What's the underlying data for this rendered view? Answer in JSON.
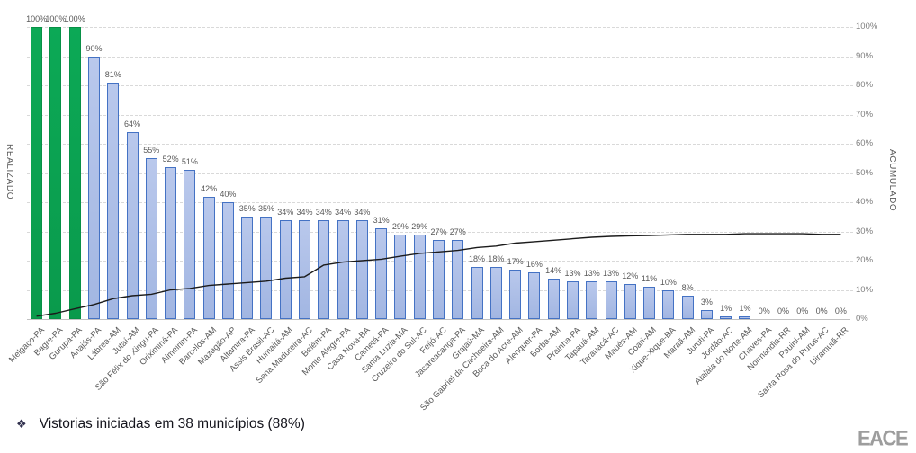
{
  "chart_data": {
    "type": "bar",
    "title": "",
    "xlabel": "",
    "categories": [
      "Melgaço-PA",
      "Bagre-PA",
      "Gurupá-PA",
      "Anajás-PA",
      "Lábrea-AM",
      "Jutaí-AM",
      "São Félix do Xingu-PA",
      "Oriximiná-PA",
      "Almeirim-PA",
      "Barcelos-AM",
      "Mazagão-AP",
      "Altamira-PA",
      "Assis Brasil-AC",
      "Humaitá-AM",
      "Sena Madureira-AC",
      "Belém-PA",
      "Monte Alegre-PA",
      "Casa Nova-BA",
      "Cametá-PA",
      "Santa Luzia-MA",
      "Cruzeiro do Sul-AC",
      "Feijó-AC",
      "Jacareacanga-PA",
      "Grajaú-MA",
      "São Gabriel da Cachoeira-AM",
      "Boca do Acre-AM",
      "Alenquer-PA",
      "Borba-AM",
      "Prainha-PA",
      "Tapauá-AM",
      "Tarauacá-AC",
      "Maués-AM",
      "Coari-AM",
      "Xique-Xique-BA",
      "Maraã-AM",
      "Juruti-PA",
      "Jordão-AC",
      "Atalaia do Norte-AM",
      "Chaves-PA",
      "Normandia-RR",
      "Pauini-AM",
      "Santa Rosa do Purus-AC",
      "Uiramutã-RR"
    ],
    "series": [
      {
        "name": "REALIZADO",
        "type": "bar",
        "axis": "primary",
        "unit": "%",
        "values": [
          100,
          100,
          100,
          90,
          81,
          64,
          55,
          52,
          51,
          42,
          40,
          35,
          35,
          34,
          34,
          34,
          34,
          34,
          31,
          29,
          29,
          27,
          27,
          18,
          18,
          17,
          16,
          14,
          13,
          13,
          13,
          12,
          11,
          10,
          8,
          3,
          1,
          1,
          0,
          0,
          0,
          0,
          0
        ]
      },
      {
        "name": "ACUMULADO",
        "type": "line",
        "axis": "secondary",
        "unit": "%",
        "note": "unlabeled line, values estimated from pixels",
        "values": [
          1,
          2,
          3.5,
          5,
          7,
          8,
          8.5,
          10,
          10.5,
          11.5,
          12,
          12.5,
          13,
          14,
          14.5,
          18.5,
          19.5,
          20,
          20.5,
          21.5,
          22.5,
          23,
          23.5,
          24.5,
          25,
          26,
          26.5,
          27,
          27.5,
          28,
          28.3,
          28.5,
          28.6,
          28.8,
          29,
          29,
          29,
          29.2,
          29.2,
          29.2,
          29.2,
          29,
          29
        ]
      }
    ],
    "green_bar_indices": [
      0,
      1,
      2
    ],
    "bar_labels_shown": true,
    "grid": true,
    "legend": "none",
    "y_axis_left": {
      "title": "REALIZADO",
      "range": [
        0,
        100
      ],
      "ticks": []
    },
    "y_axis_right": {
      "title": "ACUMULADO",
      "range": [
        0,
        100
      ],
      "ticks": [
        "0%",
        "10%",
        "20%",
        "30%",
        "40%",
        "50%",
        "60%",
        "70%",
        "80%",
        "90%",
        "100%"
      ]
    }
  },
  "colors": {
    "green_bar": "#0aa04f",
    "green_border": "#089046",
    "blue_bar": "#aabde6",
    "blue_border": "#4472c4",
    "cumulative_line": "#1b1b1b",
    "gridline": "#d9d9d9",
    "data_label": "#595959",
    "tick_label": "#7f7f7f"
  },
  "annotation": {
    "bullet": "❖",
    "text": "Vistorias iniciadas em 38 municípios (88%)"
  },
  "logo": {
    "text": "EACE"
  }
}
